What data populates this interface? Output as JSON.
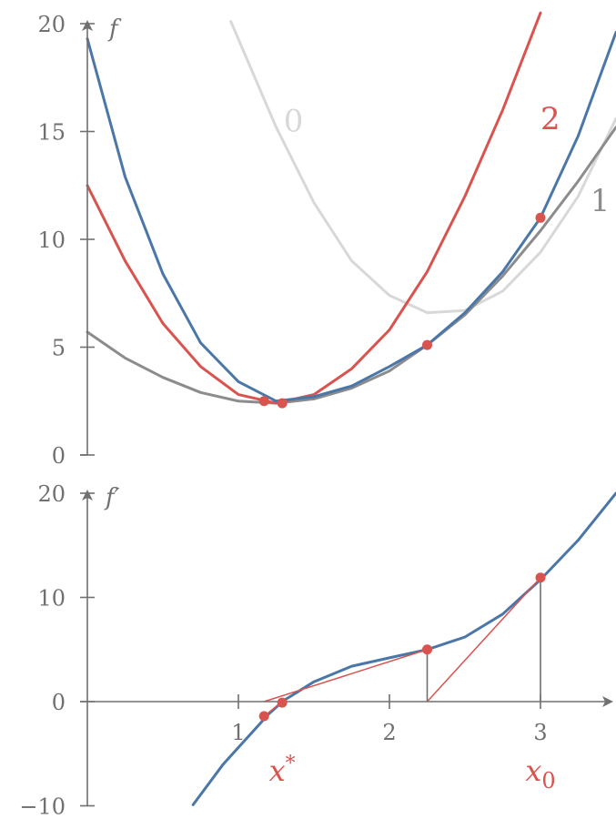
{
  "colors": {
    "axis": "#707070",
    "blue": "#4a77a8",
    "red": "#d9534f",
    "gray": "#8c8c8c",
    "light_gray": "#d8d8d8"
  },
  "chart_data": [
    {
      "type": "line",
      "ylabel": "f",
      "xlim": [
        0,
        3.5
      ],
      "ylim": [
        0,
        20
      ],
      "yticks": [
        "0",
        "5",
        "10",
        "15",
        "20"
      ],
      "grid": false,
      "series": [
        {
          "id": "f",
          "name": "",
          "color": "#4a77a8",
          "x": [
            0,
            0.25,
            0.5,
            0.75,
            1.0,
            1.25,
            1.5,
            1.75,
            2.0,
            2.25,
            2.5,
            2.75,
            3.0,
            3.25,
            3.5
          ],
          "y": [
            19.3,
            12.9,
            8.4,
            5.2,
            3.4,
            2.5,
            2.7,
            3.2,
            4.1,
            5.1,
            6.6,
            8.5,
            11.0,
            14.8,
            19.6
          ]
        },
        {
          "id": "q0",
          "name": "0",
          "color": "#d8d8d8",
          "x": [
            0.95,
            1.25,
            1.5,
            1.75,
            2.0,
            2.25,
            2.5,
            2.75,
            3.0,
            3.25,
            3.5
          ],
          "y": [
            20.1,
            15.2,
            11.7,
            9.0,
            7.4,
            6.6,
            6.7,
            7.6,
            9.4,
            12.0,
            15.6
          ]
        },
        {
          "id": "q1",
          "name": "1",
          "color": "#8c8c8c",
          "x": [
            0,
            0.25,
            0.5,
            0.75,
            1.0,
            1.25,
            1.5,
            1.75,
            2.0,
            2.25,
            2.5,
            2.75,
            3.0,
            3.25,
            3.5
          ],
          "y": [
            5.7,
            4.5,
            3.6,
            2.9,
            2.5,
            2.4,
            2.6,
            3.1,
            3.9,
            5.1,
            6.5,
            8.3,
            10.4,
            12.7,
            15.2
          ]
        },
        {
          "id": "q2",
          "name": "2",
          "color": "#d9534f",
          "x": [
            0,
            0.25,
            0.5,
            0.75,
            1.0,
            1.25,
            1.5,
            1.75,
            2.0,
            2.25,
            2.5,
            2.75,
            3.0
          ],
          "y": [
            12.5,
            9.0,
            6.1,
            4.1,
            2.8,
            2.4,
            2.8,
            4.0,
            5.8,
            8.5,
            12.0,
            16.0,
            20.5
          ]
        }
      ],
      "points": [
        {
          "x": 1.17,
          "y": 2.5
        },
        {
          "x": 1.29,
          "y": 2.4
        },
        {
          "x": 2.25,
          "y": 5.1
        },
        {
          "x": 3.0,
          "y": 11.0
        }
      ],
      "curve_labels": [
        {
          "text": "0",
          "series": "q0",
          "x": 1.3,
          "y": 15.0
        },
        {
          "text": "2",
          "series": "q2",
          "x": 3.0,
          "y": 15.1
        },
        {
          "text": "1",
          "series": "q1",
          "x": 3.33,
          "y": 11.3
        }
      ]
    },
    {
      "type": "line",
      "ylabel": "f′",
      "xlim": [
        0,
        3.5
      ],
      "ylim": [
        -10,
        20
      ],
      "xticks": [
        "1",
        "2",
        "3"
      ],
      "yticks": [
        "−10",
        "0",
        "10",
        "20"
      ],
      "grid": false,
      "series": [
        {
          "id": "fprime",
          "name": "",
          "color": "#4a77a8",
          "x": [
            0.7,
            0.9,
            1.1,
            1.2,
            1.3,
            1.5,
            1.75,
            2.0,
            2.25,
            2.5,
            2.75,
            3.0,
            3.25,
            3.5
          ],
          "y": [
            -9.9,
            -6.0,
            -2.8,
            -1.2,
            0.1,
            1.9,
            3.4,
            4.2,
            5.0,
            6.2,
            8.4,
            11.7,
            15.5,
            20.0
          ]
        }
      ],
      "points": [
        {
          "x": 1.17,
          "y": -1.4
        },
        {
          "x": 1.29,
          "y": -0.1
        },
        {
          "x": 2.25,
          "y": 5.0
        },
        {
          "x": 3.0,
          "y": 11.9
        }
      ],
      "secant_lines": [
        {
          "x1": 3.0,
          "y1": 11.9,
          "x2": 2.25,
          "y2": 0
        },
        {
          "x1": 2.25,
          "y1": 5.0,
          "x2": 1.17,
          "y2": 0
        },
        {
          "x1": 1.17,
          "y1": -1.4,
          "x2": 1.29,
          "y2": 0
        }
      ],
      "vertical_drops": [
        {
          "x": 3.0,
          "y": 11.9
        },
        {
          "x": 2.25,
          "y": 5.0
        }
      ],
      "annotations": [
        {
          "text": "x*",
          "x": 1.29,
          "y": -7.6
        },
        {
          "text": "x0",
          "x": 3.0,
          "y": -7.6
        }
      ]
    }
  ]
}
